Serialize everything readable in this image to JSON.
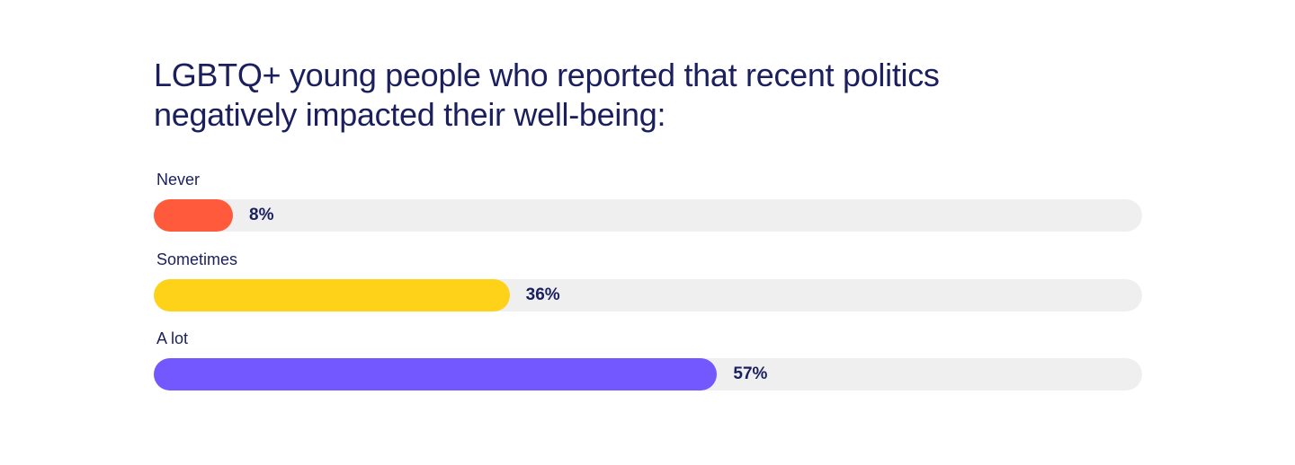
{
  "chart_data": {
    "type": "bar",
    "orientation": "horizontal",
    "title": "LGBTQ+ young people who reported that recent politics negatively impacted their well-being:",
    "xlim": [
      0,
      100
    ],
    "grid": false,
    "legend": "none",
    "categories": [
      "Never",
      "Sometimes",
      "A lot"
    ],
    "values": [
      8,
      36,
      57
    ],
    "value_labels": [
      "8%",
      "36%",
      "57%"
    ],
    "colors": [
      "#ff5a3c",
      "#ffd21a",
      "#7357ff"
    ],
    "track_color": "#efefef",
    "text_color": "#1b1f5e"
  }
}
